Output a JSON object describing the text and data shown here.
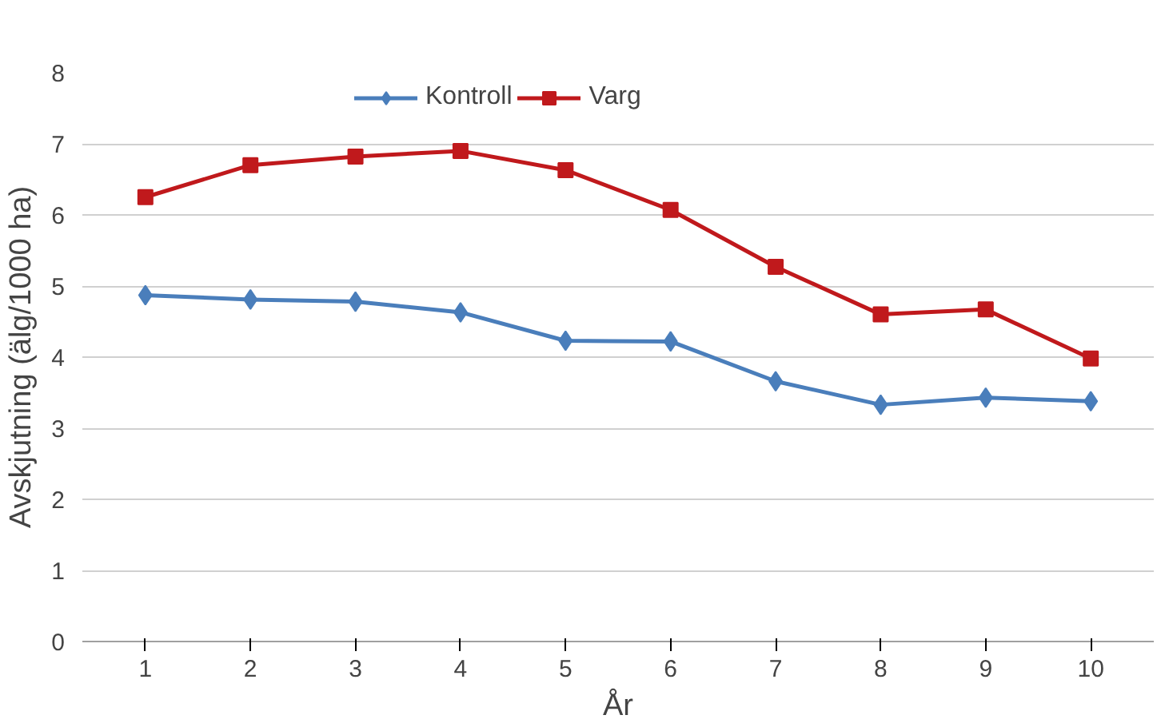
{
  "chart_data": {
    "type": "line",
    "xlabel": "År",
    "ylabel": "Avskjutning (älg/1000 ha)",
    "categories": [
      "1",
      "2",
      "3",
      "4",
      "5",
      "6",
      "7",
      "8",
      "9",
      "10"
    ],
    "series": [
      {
        "name": "Kontroll",
        "color": "#4a7ebb",
        "marker": "diamond",
        "values": [
          4.87,
          4.81,
          4.78,
          4.63,
          4.23,
          4.22,
          3.66,
          3.33,
          3.43,
          3.38
        ]
      },
      {
        "name": "Varg",
        "color": "#c0191c",
        "marker": "square",
        "values": [
          6.25,
          6.7,
          6.82,
          6.9,
          6.63,
          6.07,
          5.27,
          4.6,
          4.67,
          3.98
        ]
      }
    ],
    "ylim": [
      0,
      8
    ],
    "yticks": [
      0,
      1,
      2,
      3,
      4,
      5,
      6,
      7,
      8
    ],
    "grid": "y",
    "legend": "top",
    "line_style": "solid"
  }
}
